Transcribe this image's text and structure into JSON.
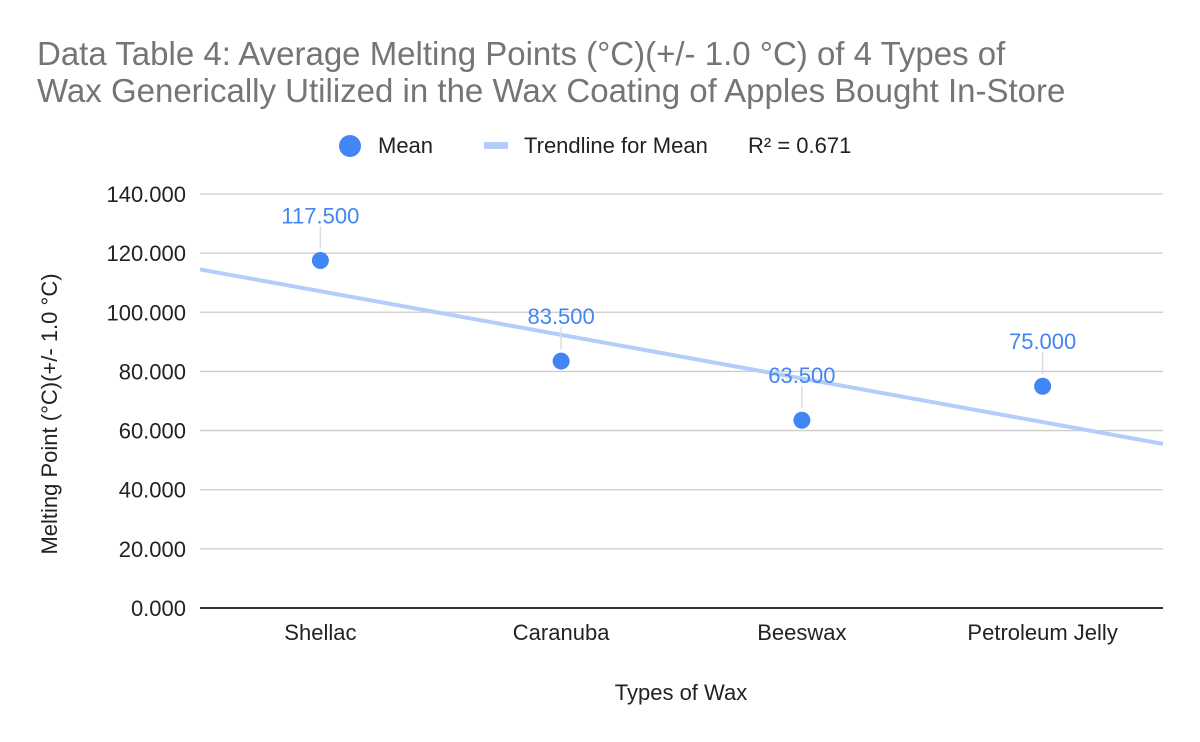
{
  "chart_data": {
    "type": "scatter",
    "title_lines": [
      "Data Table 4: Average Melting Points (°C)(+/- 1.0 °C) of 4 Types of",
      "Wax Generically Utilized in the Wax Coating of Apples Bought In-Store"
    ],
    "xlabel": "Types of Wax",
    "ylabel": "Melting Point  (°C)(+/- 1.0 °C)",
    "categories": [
      "Shellac",
      "Caranuba",
      "Beeswax",
      "Petroleum Jelly"
    ],
    "series": [
      {
        "name": "Mean",
        "values": [
          117.5,
          83.5,
          63.5,
          75.0
        ],
        "labels": [
          "117.500",
          "83.500",
          "63.500",
          "75.000"
        ],
        "color": "#4285f4"
      }
    ],
    "trendline": {
      "name": "Trendline for Mean",
      "r2_label": "R² = 0.671",
      "type": "linear",
      "start_value": 114.5,
      "end_value": 55.5,
      "color": "#b3cefb"
    },
    "ylim": [
      0,
      140
    ],
    "yticks": [
      "0.000",
      "20.000",
      "40.000",
      "60.000",
      "80.000",
      "100.000",
      "120.000",
      "140.000"
    ],
    "grid": true,
    "legend_position": "top"
  }
}
